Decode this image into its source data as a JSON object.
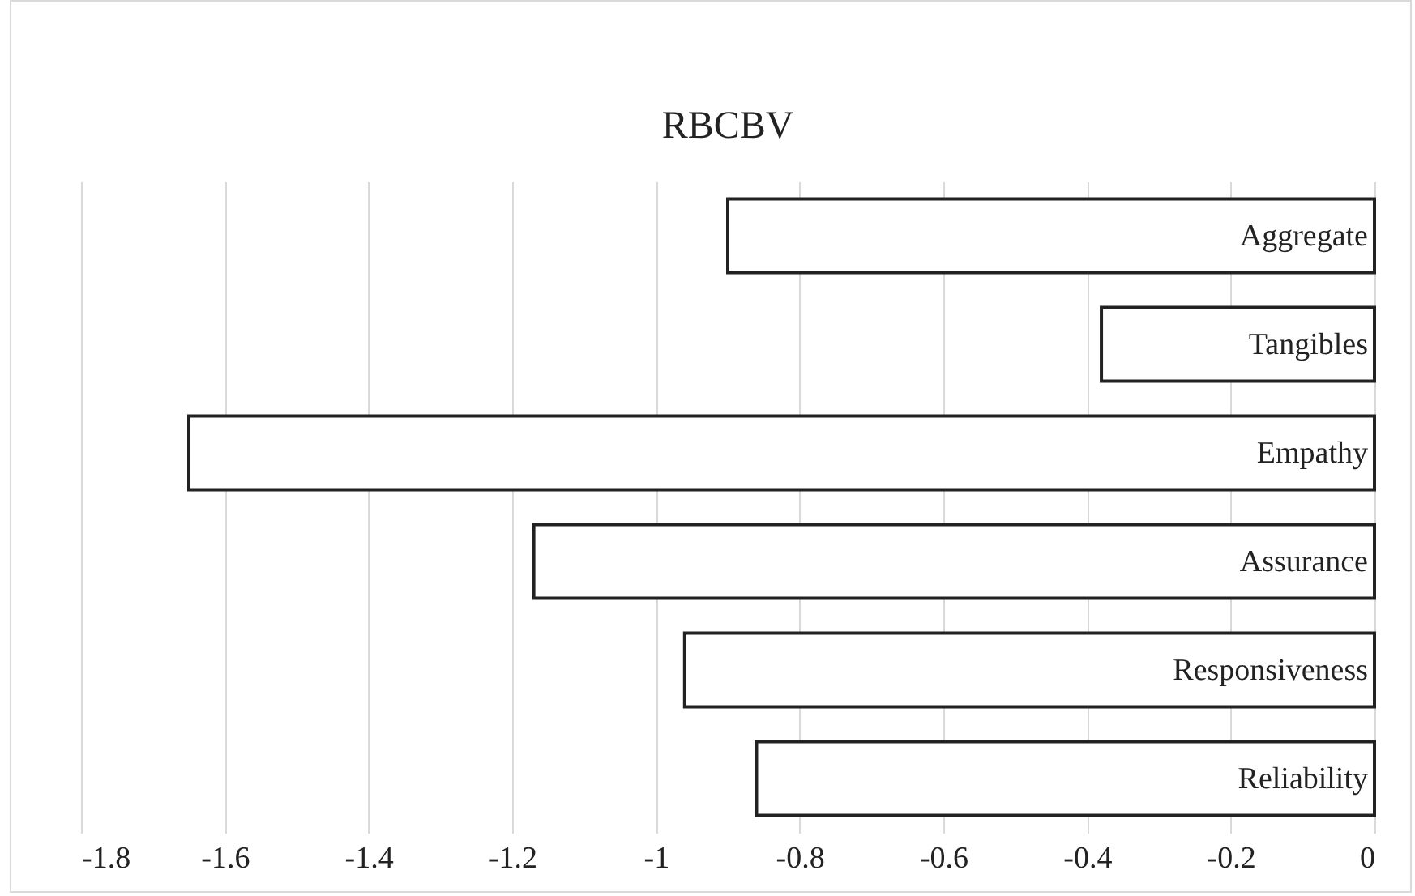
{
  "chart_data": {
    "type": "bar",
    "orientation": "horizontal",
    "title": "RBCBV",
    "categories": [
      "Aggregate",
      "Tangibles",
      "Empathy",
      "Assurance",
      "Responsiveness",
      "Reliability"
    ],
    "values": [
      -0.9,
      -0.38,
      -1.65,
      -1.17,
      -0.96,
      -0.86
    ],
    "color": "#ffffff",
    "xlim": [
      -1.8,
      0
    ],
    "xticks": [
      -1.8,
      -1.6,
      -1.4,
      -1.2,
      -1,
      -0.8,
      -0.6,
      -0.4,
      -0.2,
      0
    ],
    "grid": "x",
    "tick_labels": "x"
  }
}
